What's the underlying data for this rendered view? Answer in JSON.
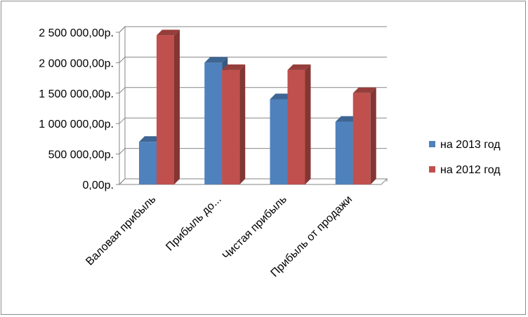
{
  "chart_data": {
    "type": "bar",
    "title": "",
    "xlabel": "",
    "ylabel": "",
    "categories": [
      "Валовая прибыль",
      "Прибыль до...",
      "Чистая прибыль",
      "Прибыль от продажи"
    ],
    "series": [
      {
        "name": "на 2013 год",
        "color": "#4f81bd",
        "values": [
          700000,
          2000000,
          1400000,
          1030000
        ]
      },
      {
        "name": "на 2012 год",
        "color": "#c0504d",
        "values": [
          2450000,
          1880000,
          1880000,
          1500000
        ]
      }
    ],
    "ylim": [
      0,
      2500000
    ],
    "yticks": [
      0,
      500000,
      1000000,
      1500000,
      2000000,
      2500000
    ],
    "ytick_labels": [
      "0,00р.",
      "500 000,00р.",
      "1 000 000,00р.",
      "1 500 000,00р.",
      "2 000 000,00р.",
      "2 500 000,00р."
    ],
    "grid": true,
    "legend_position": "right",
    "style": "3d-clustered-column"
  }
}
